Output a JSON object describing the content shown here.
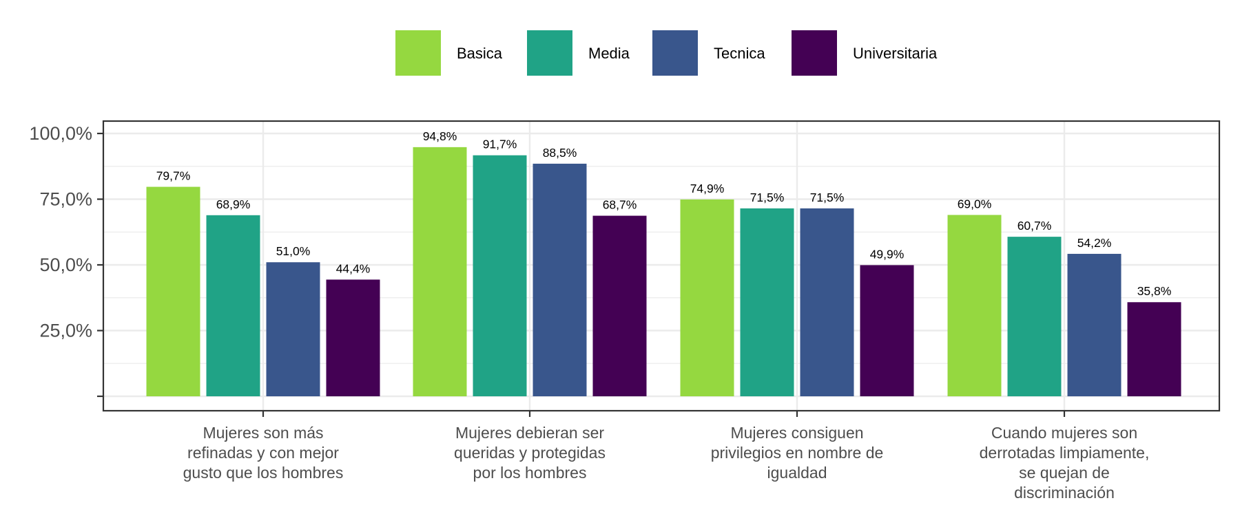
{
  "chart_data": {
    "type": "bar",
    "categories": [
      [
        "Mujeres son más",
        "refinadas y con mejor",
        "gusto que los hombres"
      ],
      [
        "Mujeres debieran ser",
        "queridas y protegidas",
        "por los hombres"
      ],
      [
        "Mujeres consiguen",
        "privilegios en nombre de",
        "igualdad"
      ],
      [
        "Cuando mujeres son",
        "derrotadas limpiamente,",
        "se quejan de",
        "discriminación"
      ]
    ],
    "series": [
      {
        "name": "Basica",
        "color": "#95d840",
        "values": [
          79.7,
          94.8,
          74.9,
          69.0
        ],
        "labels": [
          "79,7%",
          "94,8%",
          "74,9%",
          "69,0%"
        ]
      },
      {
        "name": "Media",
        "color": "#20a386",
        "values": [
          68.9,
          91.7,
          71.5,
          60.7
        ],
        "labels": [
          "68,9%",
          "91,7%",
          "71,5%",
          "60,7%"
        ]
      },
      {
        "name": "Tecnica",
        "color": "#39568c",
        "values": [
          51.0,
          88.5,
          71.5,
          54.2
        ],
        "labels": [
          "51,0%",
          "88,5%",
          "71,5%",
          "54,2%"
        ]
      },
      {
        "name": "Universitaria",
        "color": "#440154",
        "values": [
          44.4,
          68.7,
          49.9,
          35.8
        ],
        "labels": [
          "44,4%",
          "68,7%",
          "49,9%",
          "35,8%"
        ]
      }
    ],
    "yticks": [
      0,
      25,
      50,
      75,
      100
    ],
    "ytick_labels": [
      "",
      "25,0%",
      "50,0%",
      "75,0%",
      "100,0%"
    ],
    "ylim": [
      0,
      105
    ],
    "ylabel": "",
    "xlabel": "",
    "grid": true,
    "legend_position": "top"
  }
}
